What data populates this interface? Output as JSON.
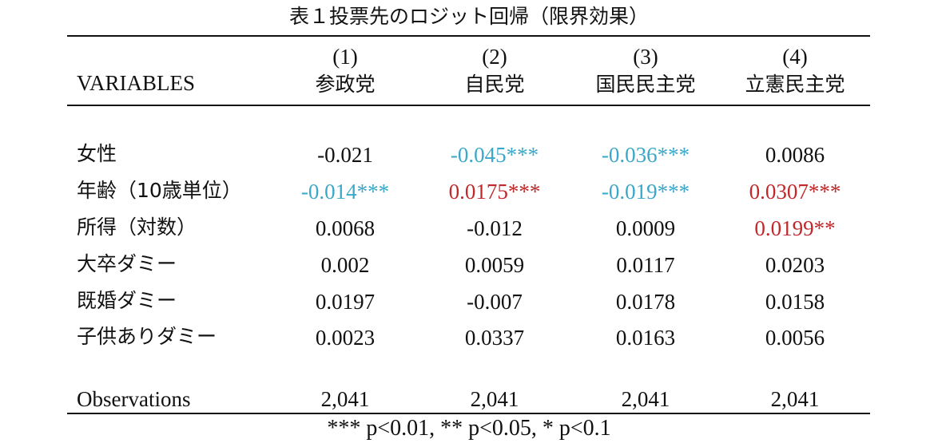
{
  "title": "表１投票先のロジット回帰（限界効果）",
  "header": {
    "variables_label": "VARIABLES",
    "columns": [
      {
        "number": "(1)",
        "party": "参政党"
      },
      {
        "number": "(2)",
        "party": "自民党"
      },
      {
        "number": "(3)",
        "party": "国民民主党"
      },
      {
        "number": "(4)",
        "party": "立憲民主党"
      }
    ]
  },
  "colors": {
    "negative_significant": "#3aa8c8",
    "positive_significant": "#c0282a",
    "default": "#111111"
  },
  "rows": [
    {
      "label": "女性",
      "values": [
        "-0.021",
        "-0.045***",
        "-0.036***",
        "0.0086"
      ],
      "colors": [
        "default",
        "negative_significant",
        "negative_significant",
        "default"
      ]
    },
    {
      "label": "年齢（10歳単位）",
      "values": [
        "-0.014***",
        "0.0175***",
        "-0.019***",
        "0.0307***"
      ],
      "colors": [
        "negative_significant",
        "positive_significant",
        "negative_significant",
        "positive_significant"
      ]
    },
    {
      "label": "所得（対数）",
      "values": [
        "0.0068",
        "-0.012",
        "0.0009",
        "0.0199**"
      ],
      "colors": [
        "default",
        "default",
        "default",
        "positive_significant"
      ]
    },
    {
      "label": "大卒ダミー",
      "values": [
        "0.002",
        "0.0059",
        "0.0117",
        "0.0203"
      ],
      "colors": [
        "default",
        "default",
        "default",
        "default"
      ]
    },
    {
      "label": "既婚ダミー",
      "values": [
        "0.0197",
        "-0.007",
        "0.0178",
        "0.0158"
      ],
      "colors": [
        "default",
        "default",
        "default",
        "default"
      ]
    },
    {
      "label": "子供ありダミー",
      "values": [
        "0.0023",
        "0.0337",
        "0.0163",
        "0.0056"
      ],
      "colors": [
        "default",
        "default",
        "default",
        "default"
      ]
    }
  ],
  "observations": {
    "label": "Observations",
    "values": [
      "2,041",
      "2,041",
      "2,041",
      "2,041"
    ]
  },
  "footnote": "*** p<0.01, ** p<0.05, * p<0.1"
}
